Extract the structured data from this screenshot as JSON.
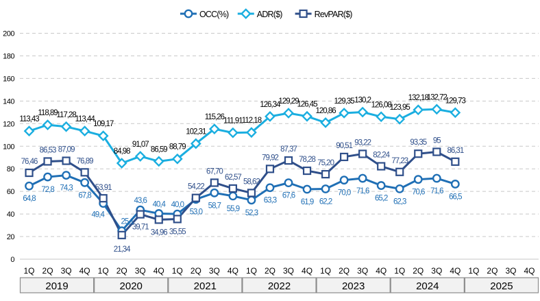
{
  "chart_data": {
    "type": "line",
    "title": "",
    "xlabel": "",
    "ylabel": "",
    "ylim": [
      0,
      200
    ],
    "yticks": [
      0,
      20,
      40,
      60,
      80,
      100,
      120,
      140,
      160,
      180,
      200
    ],
    "grid": true,
    "legend_position": "top-center",
    "years": [
      "2019",
      "2020",
      "2021",
      "2022",
      "2023",
      "2024",
      "2025"
    ],
    "quarters": [
      "1Q",
      "2Q",
      "3Q",
      "4Q"
    ],
    "categories": [
      "2019 1Q",
      "2019 2Q",
      "2019 3Q",
      "2019 4Q",
      "2020 1Q",
      "2020 2Q",
      "2020 3Q",
      "2020 4Q",
      "2021 1Q",
      "2021 2Q",
      "2021 3Q",
      "2021 4Q",
      "2022 1Q",
      "2022 2Q",
      "2022 3Q",
      "2022 4Q",
      "2023 1Q",
      "2023 2Q",
      "2023 3Q",
      "2023 4Q",
      "2024 1Q",
      "2024 2Q",
      "2024 3Q",
      "2024 4Q",
      "2025 1Q",
      "2025 2Q",
      "2025 3Q",
      "2025 4Q"
    ],
    "series": [
      {
        "name": "OCC(%)",
        "color": "#1F6FB5",
        "marker": "circle",
        "values": [
          64.8,
          72.8,
          74.3,
          67.8,
          49.4,
          25.1,
          43.6,
          40.4,
          40.0,
          53.0,
          58.7,
          55.9,
          52.3,
          63.3,
          67.6,
          61.9,
          62.2,
          70.0,
          71.6,
          65.2,
          62.3,
          70.6,
          71.6,
          66.5,
          null,
          null,
          null,
          null
        ],
        "labels": [
          "64,8",
          "72,8",
          "74,3",
          "67,8",
          "49,4",
          "25,1",
          "43,6",
          "40,4",
          "40,0",
          "53,0",
          "58,7",
          "55,9",
          "52,3",
          "63,3",
          "67,6",
          "61,9",
          "62,2",
          "70,0",
          "71,6",
          "65,2",
          "62,3",
          "70,6",
          "71,6",
          "66,5"
        ]
      },
      {
        "name": "ADR($)",
        "color": "#1AAEE0",
        "marker": "diamond",
        "values": [
          113.43,
          118.89,
          117.28,
          113.44,
          109.17,
          84.98,
          91.07,
          86.59,
          88.79,
          102.31,
          115.26,
          111.91,
          112.18,
          126.34,
          129.29,
          126.45,
          120.86,
          129.35,
          130.2,
          126.08,
          123.95,
          132.18,
          132.72,
          129.73,
          null,
          null,
          null,
          null
        ],
        "labels": [
          "113,43",
          "118,89",
          "117,28",
          "113,44",
          "109,17",
          "84,98",
          "91,07",
          "86,59",
          "88,79",
          "102,31",
          "115,26",
          "111,91",
          "112,18",
          "126,34",
          "129,29",
          "126,45",
          "120,86",
          "129,35",
          "130,2",
          "126,08",
          "123,95",
          "132,18",
          "132,72",
          "129,73"
        ]
      },
      {
        "name": "RevPAR($)",
        "color": "#2F4F8A",
        "marker": "square",
        "values": [
          76.46,
          86.53,
          87.09,
          76.89,
          53.91,
          21.34,
          39.71,
          34.96,
          35.55,
          54.22,
          67.7,
          62.57,
          58.62,
          79.92,
          87.37,
          78.28,
          75.2,
          90.51,
          93.22,
          82.24,
          77.23,
          93.35,
          95,
          86.31,
          null,
          null,
          null,
          null
        ],
        "labels": [
          "76,46",
          "86,53",
          "87,09",
          "76,89",
          "53,91",
          "21,34",
          "39,71",
          "34,96",
          "35,55",
          "54,22",
          "67,70",
          "62,57",
          "58,62",
          "79,92",
          "87,37",
          "78,28",
          "75,20",
          "90,51",
          "93,22",
          "82,24",
          "77,23",
          "93,35",
          "95",
          "86,31"
        ]
      }
    ]
  }
}
